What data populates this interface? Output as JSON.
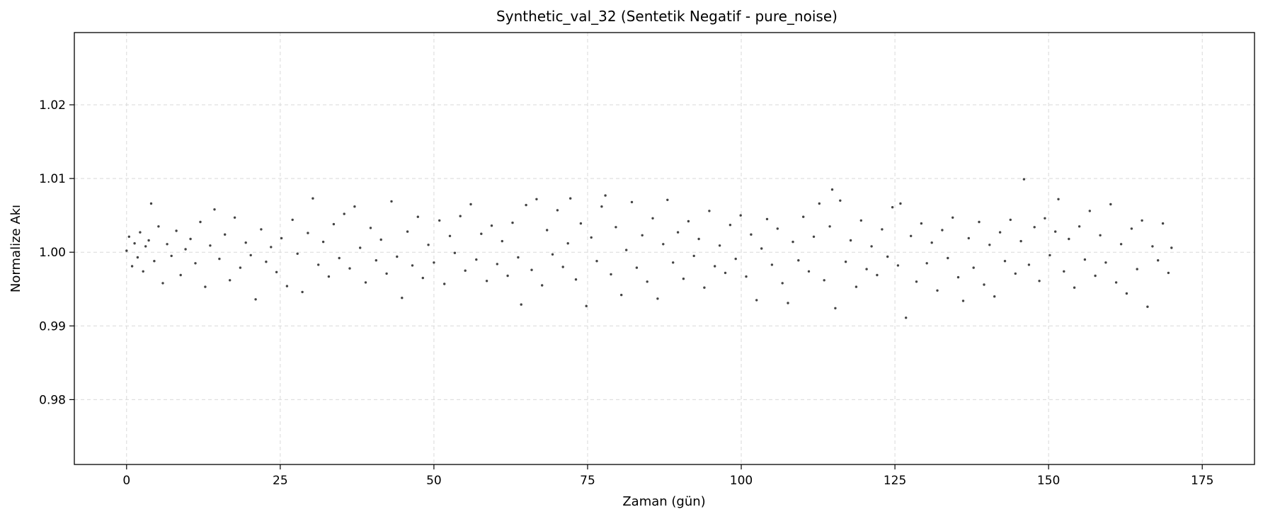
{
  "chart_data": {
    "type": "scatter",
    "title": "Synthetic_val_32 (Sentetik Negatif - pure_noise)",
    "xlabel": "Zaman (gün)",
    "ylabel": "Normalize Akı",
    "xlim": [
      -8.5,
      183.5
    ],
    "ylim": [
      0.9712,
      1.0298
    ],
    "xticks": [
      0,
      25,
      50,
      75,
      100,
      125,
      150,
      175
    ],
    "xtick_labels": [
      "0",
      "25",
      "50",
      "75",
      "100",
      "125",
      "150",
      "175"
    ],
    "yticks": [
      0.98,
      0.99,
      1.0,
      1.01,
      1.02
    ],
    "ytick_labels": [
      "0.98",
      "0.99",
      "1.00",
      "1.01",
      "1.02"
    ],
    "grid": true,
    "point_color": "#222222",
    "series": [
      {
        "points": [
          [
            0.0,
            1.0002
          ],
          [
            0.4,
            1.0021
          ],
          [
            0.9,
            0.9981
          ],
          [
            1.3,
            1.0012
          ],
          [
            1.8,
            0.9993
          ],
          [
            2.2,
            1.0027
          ],
          [
            2.7,
            0.9974
          ],
          [
            3.1,
            1.0008
          ],
          [
            3.6,
            1.0016
          ],
          [
            4.0,
            1.0066
          ],
          [
            4.5,
            0.9988
          ],
          [
            5.2,
            1.0035
          ],
          [
            5.9,
            0.9958
          ],
          [
            6.6,
            1.0011
          ],
          [
            7.3,
            0.9995
          ],
          [
            8.1,
            1.0029
          ],
          [
            8.8,
            0.9969
          ],
          [
            9.6,
            1.0004
          ],
          [
            10.4,
            1.0018
          ],
          [
            11.2,
            0.9985
          ],
          [
            12.0,
            1.0041
          ],
          [
            12.8,
            0.9953
          ],
          [
            13.6,
            1.0009
          ],
          [
            14.3,
            1.0058
          ],
          [
            15.1,
            0.9991
          ],
          [
            16.0,
            1.0024
          ],
          [
            16.8,
            0.9962
          ],
          [
            17.6,
            1.0047
          ],
          [
            18.5,
            0.9979
          ],
          [
            19.4,
            1.0013
          ],
          [
            20.2,
            0.9996
          ],
          [
            21.0,
            0.9936
          ],
          [
            21.9,
            1.0031
          ],
          [
            22.7,
            0.9987
          ],
          [
            23.5,
            1.0007
          ],
          [
            24.4,
            0.9973
          ],
          [
            25.2,
            1.0019
          ],
          [
            26.1,
            0.9954
          ],
          [
            27.0,
            1.0044
          ],
          [
            27.8,
            0.9998
          ],
          [
            28.6,
            0.9946
          ],
          [
            29.5,
            1.0026
          ],
          [
            30.3,
            1.0073
          ],
          [
            31.2,
            0.9983
          ],
          [
            32.0,
            1.0014
          ],
          [
            32.9,
            0.9967
          ],
          [
            33.7,
            1.0038
          ],
          [
            34.6,
            0.9992
          ],
          [
            35.4,
            1.0052
          ],
          [
            36.3,
            0.9978
          ],
          [
            37.1,
            1.0062
          ],
          [
            38.0,
            1.0006
          ],
          [
            38.9,
            0.9959
          ],
          [
            39.7,
            1.0033
          ],
          [
            40.6,
            0.9989
          ],
          [
            41.4,
            1.0017
          ],
          [
            42.3,
            0.9971
          ],
          [
            43.1,
            1.0069
          ],
          [
            44.0,
            0.9994
          ],
          [
            44.8,
            0.9938
          ],
          [
            45.7,
            1.0028
          ],
          [
            46.5,
            0.9982
          ],
          [
            47.4,
            1.0048
          ],
          [
            48.2,
            0.9965
          ],
          [
            49.1,
            1.001
          ],
          [
            50.0,
            0.9986
          ],
          [
            50.9,
            1.0043
          ],
          [
            51.7,
            0.9957
          ],
          [
            52.6,
            1.0022
          ],
          [
            53.4,
            0.9999
          ],
          [
            54.3,
            1.0049
          ],
          [
            55.1,
            0.9975
          ],
          [
            56.0,
            1.0065
          ],
          [
            56.9,
            0.999
          ],
          [
            57.7,
            1.0025
          ],
          [
            58.6,
            0.9961
          ],
          [
            59.4,
            1.0036
          ],
          [
            60.3,
            0.9984
          ],
          [
            61.1,
            1.0015
          ],
          [
            62.0,
            0.9968
          ],
          [
            62.8,
            1.004
          ],
          [
            63.7,
            0.9993
          ],
          [
            64.2,
            0.9929
          ],
          [
            65.0,
            1.0064
          ],
          [
            65.9,
            0.9976
          ],
          [
            66.7,
            1.0072
          ],
          [
            67.6,
            0.9955
          ],
          [
            68.4,
            1.003
          ],
          [
            69.3,
            0.9997
          ],
          [
            70.1,
            1.0057
          ],
          [
            71.0,
            0.998
          ],
          [
            71.8,
            1.0012
          ],
          [
            72.2,
            1.0073
          ],
          [
            73.1,
            0.9963
          ],
          [
            73.9,
            1.0039
          ],
          [
            74.8,
            0.9927
          ],
          [
            75.6,
            1.002
          ],
          [
            76.5,
            0.9988
          ],
          [
            77.3,
            1.0062
          ],
          [
            77.9,
            1.0077
          ],
          [
            78.8,
            0.997
          ],
          [
            79.6,
            1.0034
          ],
          [
            80.5,
            0.9942
          ],
          [
            81.3,
            1.0003
          ],
          [
            82.2,
            1.0068
          ],
          [
            83.0,
            0.9979
          ],
          [
            83.9,
            1.0023
          ],
          [
            84.7,
            0.996
          ],
          [
            85.6,
            1.0046
          ],
          [
            86.4,
            0.9937
          ],
          [
            87.3,
            1.0011
          ],
          [
            88.0,
            1.0071
          ],
          [
            88.9,
            0.9986
          ],
          [
            89.7,
            1.0027
          ],
          [
            90.6,
            0.9964
          ],
          [
            91.4,
            1.0042
          ],
          [
            92.3,
            0.9995
          ],
          [
            93.1,
            1.0018
          ],
          [
            94.0,
            0.9952
          ],
          [
            94.8,
            1.0056
          ],
          [
            95.7,
            0.9981
          ],
          [
            96.5,
            1.0009
          ],
          [
            97.4,
            0.9972
          ],
          [
            98.2,
            1.0037
          ],
          [
            99.1,
            0.9991
          ],
          [
            99.9,
            1.005
          ],
          [
            100.8,
            0.9967
          ],
          [
            101.6,
            1.0024
          ],
          [
            102.5,
            0.9935
          ],
          [
            103.3,
            1.0005
          ],
          [
            104.2,
            1.0045
          ],
          [
            105.0,
            0.9983
          ],
          [
            105.9,
            1.0032
          ],
          [
            106.7,
            0.9958
          ],
          [
            107.6,
            0.9931
          ],
          [
            108.4,
            1.0014
          ],
          [
            109.3,
            0.9989
          ],
          [
            110.1,
            1.0048
          ],
          [
            111.0,
            0.9974
          ],
          [
            111.8,
            1.0021
          ],
          [
            112.7,
            1.0066
          ],
          [
            113.5,
            0.9962
          ],
          [
            114.4,
            1.0035
          ],
          [
            114.8,
            1.0085
          ],
          [
            115.3,
            0.9924
          ],
          [
            116.1,
            1.007
          ],
          [
            117.0,
            0.9987
          ],
          [
            117.8,
            1.0016
          ],
          [
            118.7,
            0.9953
          ],
          [
            119.5,
            1.0043
          ],
          [
            120.4,
            0.9977
          ],
          [
            121.2,
            1.0008
          ],
          [
            122.1,
            0.9969
          ],
          [
            122.9,
            1.0031
          ],
          [
            123.8,
            0.9994
          ],
          [
            124.6,
            1.0061
          ],
          [
            125.5,
            0.9982
          ],
          [
            125.9,
            1.0066
          ],
          [
            126.8,
            0.9911
          ],
          [
            127.6,
            1.0022
          ],
          [
            128.5,
            0.996
          ],
          [
            129.3,
            1.0039
          ],
          [
            130.2,
            0.9985
          ],
          [
            131.0,
            1.0013
          ],
          [
            131.9,
            0.9948
          ],
          [
            132.7,
            1.003
          ],
          [
            133.6,
            0.9992
          ],
          [
            134.4,
            1.0047
          ],
          [
            135.3,
            0.9966
          ],
          [
            136.1,
            0.9934
          ],
          [
            137.0,
            1.0019
          ],
          [
            137.8,
            0.9979
          ],
          [
            138.7,
            1.0041
          ],
          [
            139.5,
            0.9956
          ],
          [
            140.4,
            1.001
          ],
          [
            141.2,
            0.994
          ],
          [
            142.1,
            1.0027
          ],
          [
            142.9,
            0.9988
          ],
          [
            143.8,
            1.0044
          ],
          [
            144.6,
            0.9971
          ],
          [
            145.5,
            1.0015
          ],
          [
            146.0,
            1.0099
          ],
          [
            146.8,
            0.9983
          ],
          [
            147.7,
            1.0034
          ],
          [
            148.5,
            0.9961
          ],
          [
            149.4,
            1.0046
          ],
          [
            150.2,
            0.9996
          ],
          [
            151.1,
            1.0028
          ],
          [
            151.6,
            1.0072
          ],
          [
            152.5,
            0.9974
          ],
          [
            153.3,
            1.0018
          ],
          [
            154.2,
            0.9952
          ],
          [
            155.0,
            1.0035
          ],
          [
            155.9,
            0.999
          ],
          [
            156.7,
            1.0056
          ],
          [
            157.6,
            0.9968
          ],
          [
            158.4,
            1.0023
          ],
          [
            159.3,
            0.9986
          ],
          [
            160.1,
            1.0065
          ],
          [
            161.0,
            0.9959
          ],
          [
            161.8,
            1.0011
          ],
          [
            162.7,
            0.9944
          ],
          [
            163.5,
            1.0032
          ],
          [
            164.4,
            0.9977
          ],
          [
            165.2,
            1.0043
          ],
          [
            166.1,
            0.9926
          ],
          [
            166.9,
            1.0008
          ],
          [
            167.8,
            0.9989
          ],
          [
            168.6,
            1.0039
          ],
          [
            169.5,
            0.9972
          ],
          [
            170.0,
            1.0006
          ]
        ]
      }
    ]
  }
}
